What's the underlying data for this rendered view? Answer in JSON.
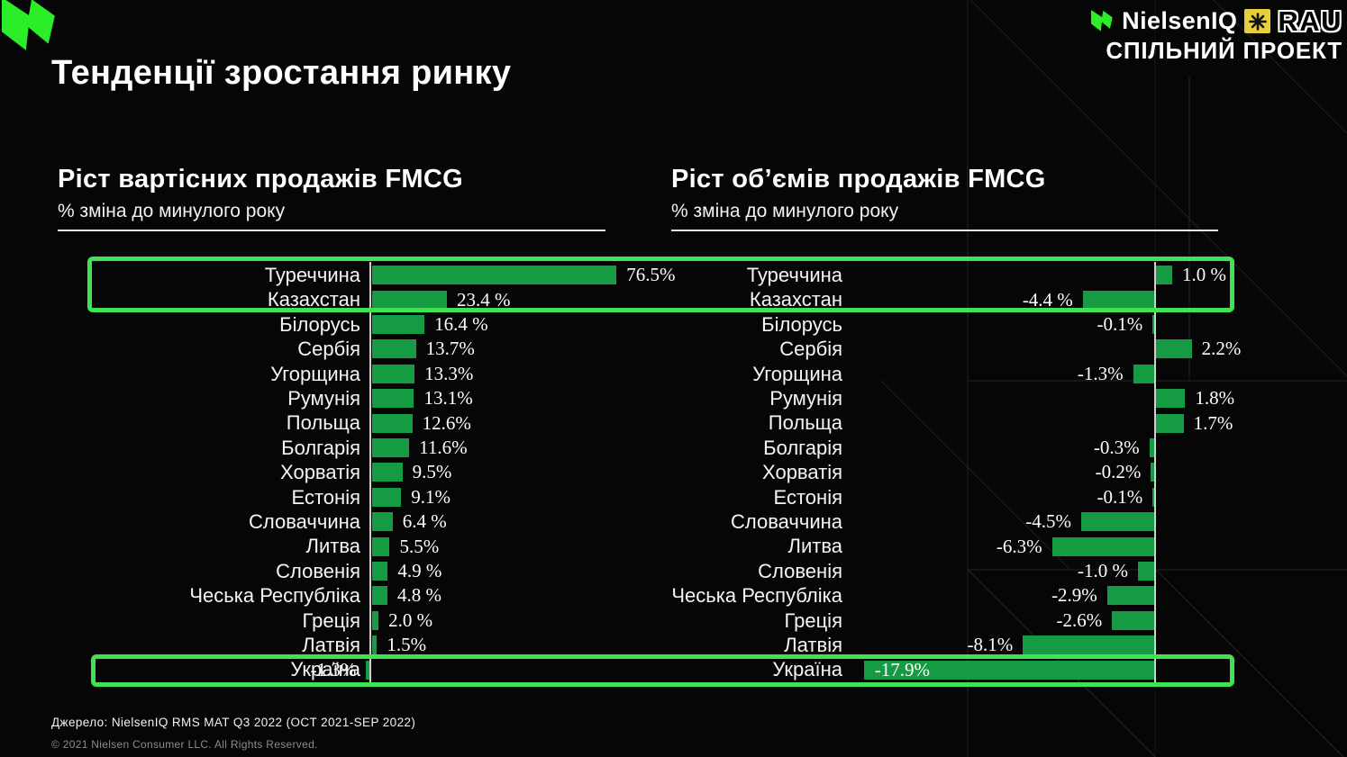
{
  "header": {
    "title": "Тенденції зростання ринку"
  },
  "brand": {
    "nielsen_name": "NielsenIQ",
    "rau_name": "RAU",
    "tagline": "СПІЛЬНИЙ ПРОЕКТ"
  },
  "chart_data": [
    {
      "type": "bar",
      "orientation": "horizontal",
      "title": "Ріст вартісних продажів FMCG",
      "subtitle": "% зміна до минулого року",
      "categories": [
        "Туреччина",
        "Казахстан",
        "Білорусь",
        "Сербія",
        "Угорщина",
        "Румунія",
        "Польща",
        "Болгарія",
        "Хорватія",
        "Естонія",
        "Словаччина",
        "Литва",
        "Словенія",
        "Чеська Республіка",
        "Греція",
        "Латвія",
        "Україна"
      ],
      "values": [
        76.5,
        23.4,
        16.4,
        13.7,
        13.3,
        13.1,
        12.6,
        11.6,
        9.5,
        9.1,
        6.4,
        5.5,
        4.9,
        4.8,
        2.0,
        1.5,
        -1.3
      ],
      "labels": [
        "76.5%",
        "23.4 %",
        "16.4 %",
        "13.7%",
        "13.3%",
        "13.1%",
        "12.6%",
        "11.6%",
        "9.5%",
        "9.1%",
        "6.4 %",
        "5.5%",
        "4.9 %",
        "4.8 %",
        "2.0 %",
        "1.5%",
        "-1.3%"
      ],
      "xlim": [
        -5,
        80
      ],
      "grid": false,
      "legend": false
    },
    {
      "type": "bar",
      "orientation": "horizontal",
      "title": "Ріст об’ємів продажів FMCG",
      "subtitle": "% зміна до минулого року",
      "categories": [
        "Туреччина",
        "Казахстан",
        "Білорусь",
        "Сербія",
        "Угорщина",
        "Румунія",
        "Польща",
        "Болгарія",
        "Хорватія",
        "Естонія",
        "Словаччина",
        "Литва",
        "Словенія",
        "Чеська Республіка",
        "Греція",
        "Латвія",
        "Україна"
      ],
      "values": [
        1.0,
        -4.4,
        -0.1,
        2.2,
        -1.3,
        1.8,
        1.7,
        -0.3,
        -0.2,
        -0.1,
        -4.5,
        -6.3,
        -1.0,
        -2.9,
        -2.6,
        -8.1,
        -17.9
      ],
      "labels": [
        "1.0 %",
        "-4.4 %",
        "-0.1%",
        "2.2%",
        "-1.3%",
        "1.8%",
        "1.7%",
        "-0.3%",
        "-0.2%",
        "-0.1%",
        "-4.5%",
        "-6.3%",
        "-1.0 %",
        "-2.9%",
        "-2.6%",
        "-8.1%",
        "-17.9%"
      ],
      "xlim": [
        -20,
        4
      ],
      "grid": false,
      "legend": false
    }
  ],
  "highlights": {
    "top_box_rows": [
      "Туреччина",
      "Казахстан"
    ],
    "bottom_box_rows": [
      "Україна"
    ]
  },
  "footer": {
    "source": "Джерело: NielsenIQ RMS MAT Q3 2022  (OCT 2021-SEP 2022)",
    "copyright": "© 2021 Nielsen Consumer LLC. All Rights Reserved."
  },
  "colors": {
    "bar_green": "#169a43",
    "highlight_green": "#3fe34f",
    "logo_green": "#2bee28",
    "rau_yellow": "#e6cf3a",
    "background": "#060606",
    "axis": "#cfcfcf"
  }
}
